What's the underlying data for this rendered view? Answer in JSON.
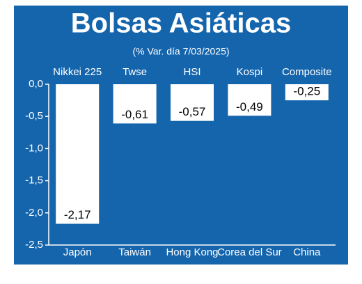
{
  "chart_data": {
    "type": "bar",
    "title": "Bolsas Asiáticas",
    "subtitle": "(% Var. día 7/03/2025)",
    "categories": [
      "Japón",
      "Taiwán",
      "Hong Kong",
      "Corea del Sur",
      "China"
    ],
    "index_names": [
      "Nikkei 225",
      "Twse",
      "HSI",
      "Kospi",
      "Composite"
    ],
    "values": [
      -2.17,
      -0.61,
      -0.57,
      -0.49,
      -0.25
    ],
    "value_labels": [
      "-2,17",
      "-0,61",
      "-0,57",
      "-0,49",
      "-0,25"
    ],
    "color": "#ffffff",
    "background": "#1565ad",
    "ylim": [
      -2.5,
      0
    ],
    "yticks": [
      {
        "value": 0,
        "label": "0,0"
      },
      {
        "value": -0.5,
        "label": "-0,5"
      },
      {
        "value": -1,
        "label": "-1,0"
      },
      {
        "value": -1.5,
        "label": "-1,5"
      },
      {
        "value": -2,
        "label": "-2,0"
      },
      {
        "value": -2.5,
        "label": "-2,5"
      }
    ]
  }
}
